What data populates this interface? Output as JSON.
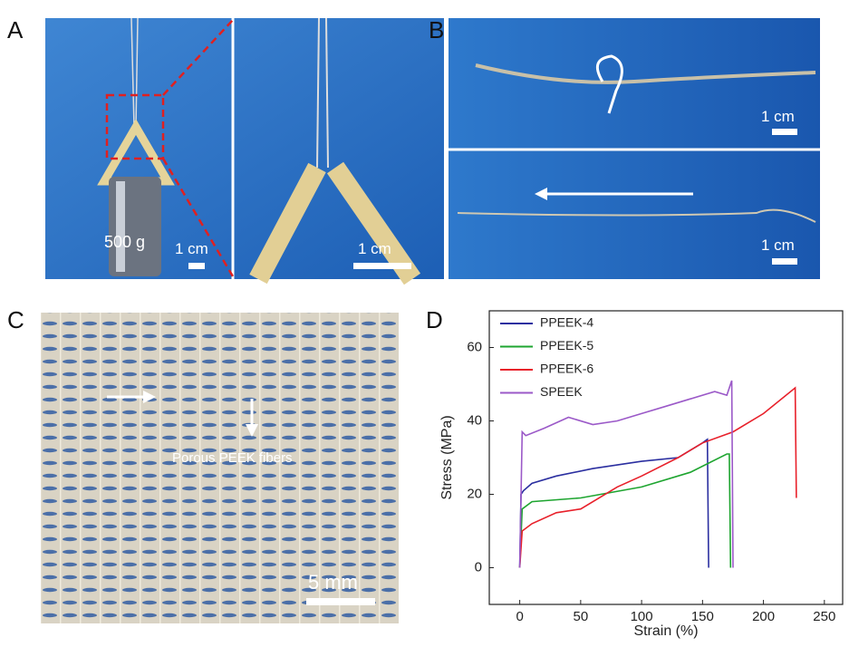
{
  "panels": {
    "A": {
      "label": "A",
      "weight": "500 g",
      "scale_left": "1 cm",
      "scale_right": "1 cm"
    },
    "B": {
      "label": "B",
      "scale_top": "1 cm",
      "scale_bottom": "1 cm"
    },
    "C": {
      "label": "C",
      "annotation": "Porous PEEK fibers",
      "scale": "5 mm"
    },
    "D": {
      "label": "D"
    }
  },
  "chart_data": {
    "type": "line",
    "xlabel": "Strain (%)",
    "ylabel": "Stress (MPa)",
    "xlim": [
      -25,
      265
    ],
    "ylim": [
      -10,
      70
    ],
    "xticks": [
      0,
      50,
      100,
      150,
      200,
      250
    ],
    "yticks": [
      0,
      20,
      40,
      60
    ],
    "series": [
      {
        "name": "PPEEK-4",
        "color": "#2b2fa0",
        "x": [
          0,
          1,
          3,
          10,
          30,
          60,
          100,
          130,
          150,
          154,
          155
        ],
        "values": [
          0,
          20,
          21,
          23,
          25,
          27,
          29,
          30,
          34,
          35,
          0
        ]
      },
      {
        "name": "PPEEK-5",
        "color": "#1ea530",
        "x": [
          0,
          2,
          10,
          50,
          100,
          140,
          170,
          172,
          173
        ],
        "values": [
          0,
          16,
          18,
          19,
          22,
          26,
          31,
          31,
          0
        ]
      },
      {
        "name": "PPEEK-6",
        "color": "#e8202a",
        "x": [
          0,
          2,
          10,
          30,
          50,
          80,
          100,
          130,
          150,
          175,
          200,
          226,
          227
        ],
        "values": [
          0,
          10,
          12,
          15,
          16,
          22,
          25,
          30,
          34,
          37,
          42,
          49,
          19
        ]
      },
      {
        "name": "SPEEK",
        "color": "#9b59c8",
        "x": [
          0,
          2,
          5,
          20,
          40,
          60,
          80,
          100,
          120,
          140,
          160,
          170,
          174,
          175
        ],
        "values": [
          0,
          37,
          36,
          38,
          41,
          39,
          40,
          42,
          44,
          46,
          48,
          47,
          51,
          0
        ]
      }
    ]
  }
}
